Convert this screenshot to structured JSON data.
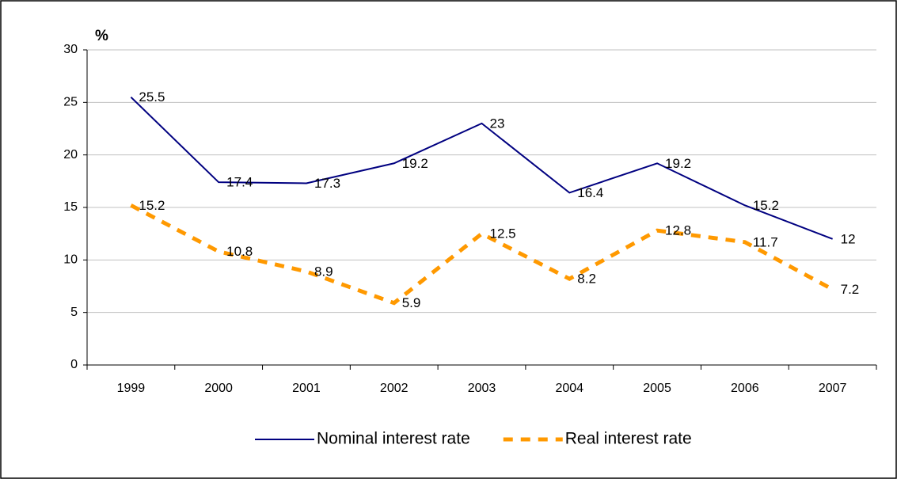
{
  "chart_data": {
    "type": "line",
    "y_label": "%",
    "categories": [
      "1999",
      "2000",
      "2001",
      "2002",
      "2003",
      "2004",
      "2005",
      "2006",
      "2007"
    ],
    "series": [
      {
        "name": "Nominal interest rate",
        "color": "#000080",
        "style": "solid",
        "values": [
          25.5,
          17.4,
          17.3,
          19.2,
          23,
          16.4,
          19.2,
          15.2,
          12
        ]
      },
      {
        "name": "Real interest rate",
        "color": "#FF9900",
        "style": "dashed",
        "values": [
          15.2,
          10.8,
          8.9,
          5.9,
          12.5,
          8.2,
          12.8,
          11.7,
          7.2
        ]
      }
    ],
    "ylim": [
      0,
      30
    ],
    "yticks": [
      0,
      5,
      10,
      15,
      20,
      25,
      30
    ],
    "grid": true,
    "legend": "bottom",
    "data_labels": true
  }
}
